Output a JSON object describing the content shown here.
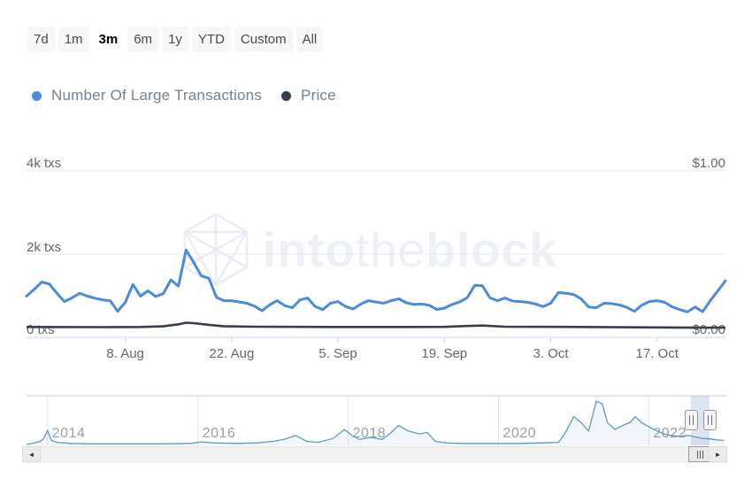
{
  "toolbar": {
    "selected": "3m",
    "ranges": [
      {
        "label": "7d"
      },
      {
        "label": "1m"
      },
      {
        "label": "3m"
      },
      {
        "label": "6m"
      },
      {
        "label": "1y"
      },
      {
        "label": "YTD"
      },
      {
        "label": "Custom"
      },
      {
        "label": "All"
      }
    ]
  },
  "legend": {
    "items": [
      {
        "label": "Number Of Large Transactions",
        "color": "#4a8bdb"
      },
      {
        "label": "Price",
        "color": "#373f48"
      }
    ]
  },
  "watermark": {
    "into": "into",
    "the": "the",
    "block": "block"
  },
  "icons": {
    "scroll_left": "◄",
    "scroll_right": "►"
  },
  "colors": {
    "transactions_line": "#4a8bdb",
    "price_line": "#373f48",
    "navigator_line": "#5b97d8",
    "navigator_fill": "rgba(74,126,196,0.07)",
    "selection_mask": "rgba(102,133,194,0.22)",
    "gridline": "#e8e8e8",
    "axis_line": "#ccd6eb"
  },
  "chart_data": [
    {
      "type": "line",
      "role": "main",
      "title": "",
      "xlabel": "",
      "ylabel": "",
      "grid": true,
      "legend_position": "top-left",
      "days_total": 92,
      "x_tick_labels": [
        "8. Aug",
        "22. Aug",
        "5. Sep",
        "19. Sep",
        "3. Oct",
        "17. Oct"
      ],
      "x_tick_days": [
        13,
        27,
        41,
        55,
        69,
        83
      ],
      "left_axis": {
        "labels": [
          "4k txs",
          "2k txs",
          "0 txs"
        ],
        "ticks": [
          4000,
          2000,
          0
        ],
        "max": 4000,
        "unit": "txs"
      },
      "right_axis": {
        "labels": [
          "$1.00",
          "$0.00"
        ],
        "ticks": [
          1.0,
          0.0
        ],
        "max": 1.0,
        "unit": "$"
      },
      "series": [
        {
          "name": "Number Of Large Transactions",
          "axis": "left",
          "color": "#4a8bdb",
          "start_day": 0,
          "day_step": 1,
          "values": [
            990,
            1150,
            1330,
            1280,
            1060,
            860,
            950,
            1060,
            990,
            940,
            900,
            880,
            625,
            840,
            1270,
            990,
            1120,
            980,
            1050,
            1380,
            1230,
            2100,
            1800,
            1480,
            1420,
            960,
            880,
            880,
            850,
            820,
            750,
            640,
            780,
            880,
            760,
            710,
            900,
            945,
            740,
            665,
            820,
            860,
            740,
            680,
            800,
            880,
            850,
            820,
            880,
            925,
            830,
            790,
            800,
            770,
            670,
            700,
            790,
            850,
            950,
            1250,
            1240,
            950,
            880,
            945,
            870,
            860,
            840,
            800,
            740,
            820,
            1075,
            1060,
            1030,
            925,
            730,
            710,
            820,
            810,
            780,
            720,
            625,
            775,
            860,
            880,
            840,
            730,
            665,
            610,
            730,
            615,
            880,
            1120,
            1360
          ]
        },
        {
          "name": "Price",
          "axis": "right",
          "color": "#373f48",
          "days": [
            0,
            10,
            15,
            18,
            20,
            21,
            22,
            24,
            26,
            30,
            40,
            50,
            55,
            58,
            60,
            63,
            70,
            80,
            88,
            92
          ],
          "values": [
            0.062,
            0.061,
            0.062,
            0.066,
            0.078,
            0.088,
            0.085,
            0.075,
            0.066,
            0.064,
            0.062,
            0.062,
            0.063,
            0.068,
            0.071,
            0.064,
            0.063,
            0.06,
            0.058,
            0.058
          ]
        }
      ]
    },
    {
      "type": "area",
      "role": "navigator",
      "x_start_year": 2013.72,
      "x_end_year": 2023.02,
      "year_gridlines": [
        2014,
        2016,
        2018,
        2020,
        2022
      ],
      "year_labels": [
        "2014",
        "2016",
        "2018",
        "2020",
        "2022"
      ],
      "selection": {
        "start_year": 2022.56,
        "end_year": 2022.81
      },
      "x_years": [
        2013.72,
        2013.8,
        2013.9,
        2013.95,
        2014.0,
        2014.05,
        2014.12,
        2014.3,
        2014.6,
        2015.0,
        2015.5,
        2015.9,
        2016.05,
        2016.2,
        2016.5,
        2016.8,
        2017.0,
        2017.15,
        2017.3,
        2017.45,
        2017.6,
        2017.8,
        2017.95,
        2018.05,
        2018.15,
        2018.3,
        2018.45,
        2018.55,
        2018.67,
        2018.8,
        2018.95,
        2019.05,
        2019.16,
        2019.3,
        2019.5,
        2019.75,
        2020.0,
        2020.3,
        2020.6,
        2020.8,
        2020.9,
        2021.0,
        2021.1,
        2021.2,
        2021.3,
        2021.38,
        2021.45,
        2021.55,
        2021.65,
        2021.75,
        2021.82,
        2021.9,
        2021.97,
        2022.07,
        2022.2,
        2022.3,
        2022.42,
        2022.52,
        2022.62,
        2022.72,
        2022.81,
        2022.9,
        2023.0
      ],
      "values_norm": [
        0.02,
        0.04,
        0.08,
        0.14,
        0.3,
        0.1,
        0.06,
        0.04,
        0.03,
        0.03,
        0.03,
        0.04,
        0.07,
        0.05,
        0.04,
        0.05,
        0.08,
        0.12,
        0.2,
        0.08,
        0.06,
        0.14,
        0.32,
        0.2,
        0.12,
        0.16,
        0.12,
        0.23,
        0.4,
        0.29,
        0.23,
        0.26,
        0.08,
        0.05,
        0.04,
        0.04,
        0.04,
        0.04,
        0.05,
        0.06,
        0.28,
        0.58,
        0.46,
        0.29,
        0.89,
        0.84,
        0.46,
        0.32,
        0.4,
        0.46,
        0.58,
        0.46,
        0.4,
        0.32,
        0.23,
        0.2,
        0.18,
        0.2,
        0.17,
        0.14,
        0.13,
        0.11,
        0.1
      ]
    }
  ]
}
